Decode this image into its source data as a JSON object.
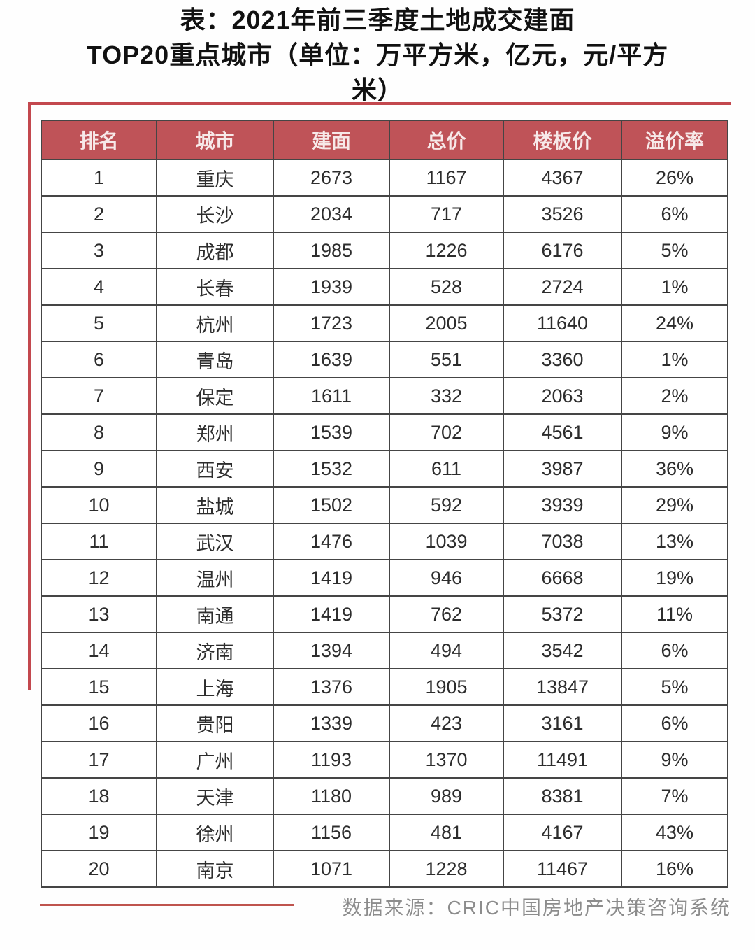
{
  "title": {
    "lines": [
      "表：2021年前三季度土地成交建面",
      "TOP20重点城市（单位：万平方米，亿元，元/平方",
      "米）"
    ]
  },
  "chart_data": {
    "type": "table",
    "title": "表：2021年前三季度土地成交建面TOP20重点城市（单位：万平方米，亿元，元/平方米）",
    "columns": [
      "排名",
      "城市",
      "建面",
      "总价",
      "楼板价",
      "溢价率"
    ],
    "rows": [
      [
        "1",
        "重庆",
        "2673",
        "1167",
        "4367",
        "26%"
      ],
      [
        "2",
        "长沙",
        "2034",
        "717",
        "3526",
        "6%"
      ],
      [
        "3",
        "成都",
        "1985",
        "1226",
        "6176",
        "5%"
      ],
      [
        "4",
        "长春",
        "1939",
        "528",
        "2724",
        "1%"
      ],
      [
        "5",
        "杭州",
        "1723",
        "2005",
        "11640",
        "24%"
      ],
      [
        "6",
        "青岛",
        "1639",
        "551",
        "3360",
        "1%"
      ],
      [
        "7",
        "保定",
        "1611",
        "332",
        "2063",
        "2%"
      ],
      [
        "8",
        "郑州",
        "1539",
        "702",
        "4561",
        "9%"
      ],
      [
        "9",
        "西安",
        "1532",
        "611",
        "3987",
        "36%"
      ],
      [
        "10",
        "盐城",
        "1502",
        "592",
        "3939",
        "29%"
      ],
      [
        "11",
        "武汉",
        "1476",
        "1039",
        "7038",
        "13%"
      ],
      [
        "12",
        "温州",
        "1419",
        "946",
        "6668",
        "19%"
      ],
      [
        "13",
        "南通",
        "1419",
        "762",
        "5372",
        "11%"
      ],
      [
        "14",
        "济南",
        "1394",
        "494",
        "3542",
        "6%"
      ],
      [
        "15",
        "上海",
        "1376",
        "1905",
        "13847",
        "5%"
      ],
      [
        "16",
        "贵阳",
        "1339",
        "423",
        "3161",
        "6%"
      ],
      [
        "17",
        "广州",
        "1193",
        "1370",
        "11491",
        "9%"
      ],
      [
        "18",
        "天津",
        "1180",
        "989",
        "8381",
        "7%"
      ],
      [
        "19",
        "徐州",
        "1156",
        "481",
        "4167",
        "43%"
      ],
      [
        "20",
        "南京",
        "1071",
        "1228",
        "11467",
        "16%"
      ]
    ]
  },
  "source": {
    "text": "数据来源：CRIC中国房地产决策咨询系统"
  },
  "colors": {
    "header_bg": "#bf5358",
    "header_text": "#f7e9e9",
    "frame_red": "#c3484e",
    "underline_red": "#bf544e",
    "table_border": "#454545",
    "cell_text": "#2d2d2d",
    "title_text": "#111111",
    "source_text": "#8c8c8c",
    "page_bg": "#fefefe"
  }
}
